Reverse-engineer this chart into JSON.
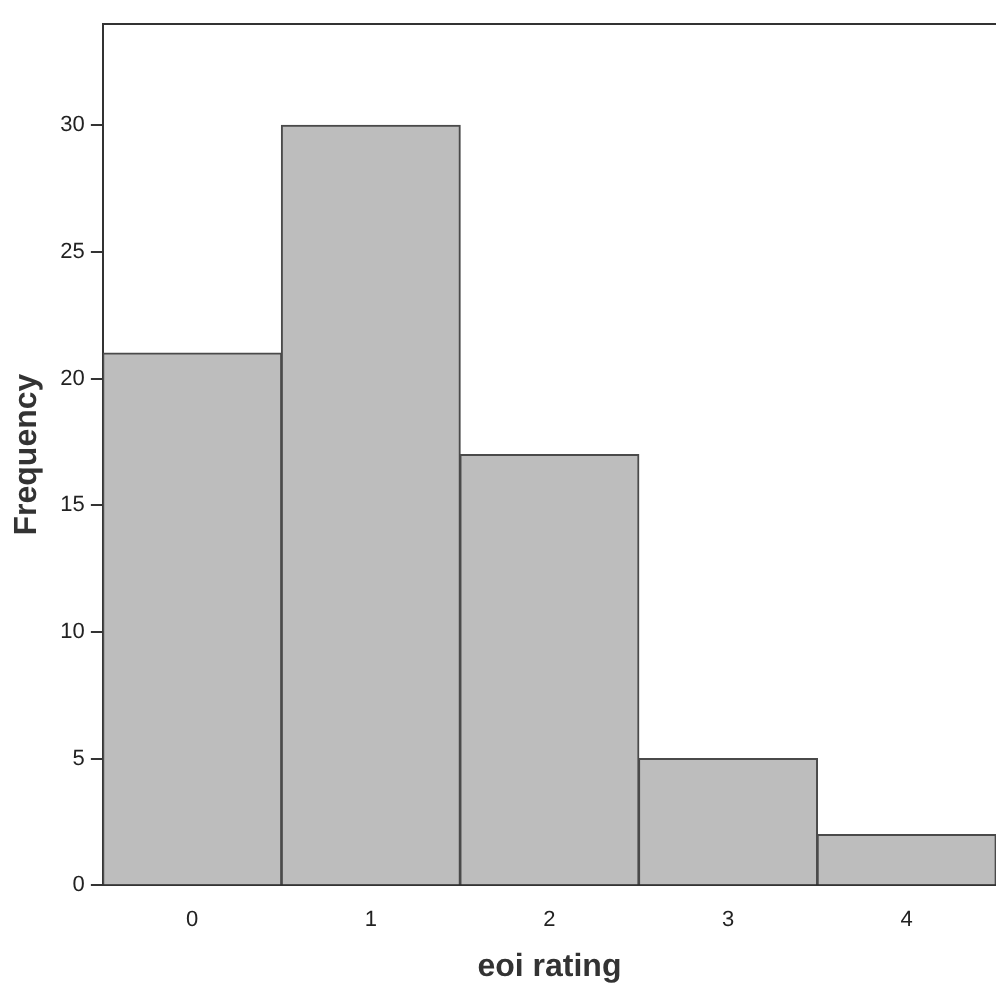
{
  "chart_data": {
    "type": "histogram",
    "xlabel": "eoi rating",
    "ylabel": "Frequency",
    "bins": [
      -0.5,
      0.5,
      1.5,
      2.5,
      3.5,
      4.5
    ],
    "values": [
      21,
      30,
      17,
      5,
      2
    ],
    "color": "#bdbdbd",
    "xlim": [
      -0.5,
      4.5
    ],
    "xticks": [
      0,
      1,
      2,
      3,
      4
    ],
    "ylim": [
      0,
      34
    ],
    "yticks": [
      0,
      5,
      10,
      15,
      20,
      25,
      30
    ],
    "grid": false,
    "legend": false
  }
}
